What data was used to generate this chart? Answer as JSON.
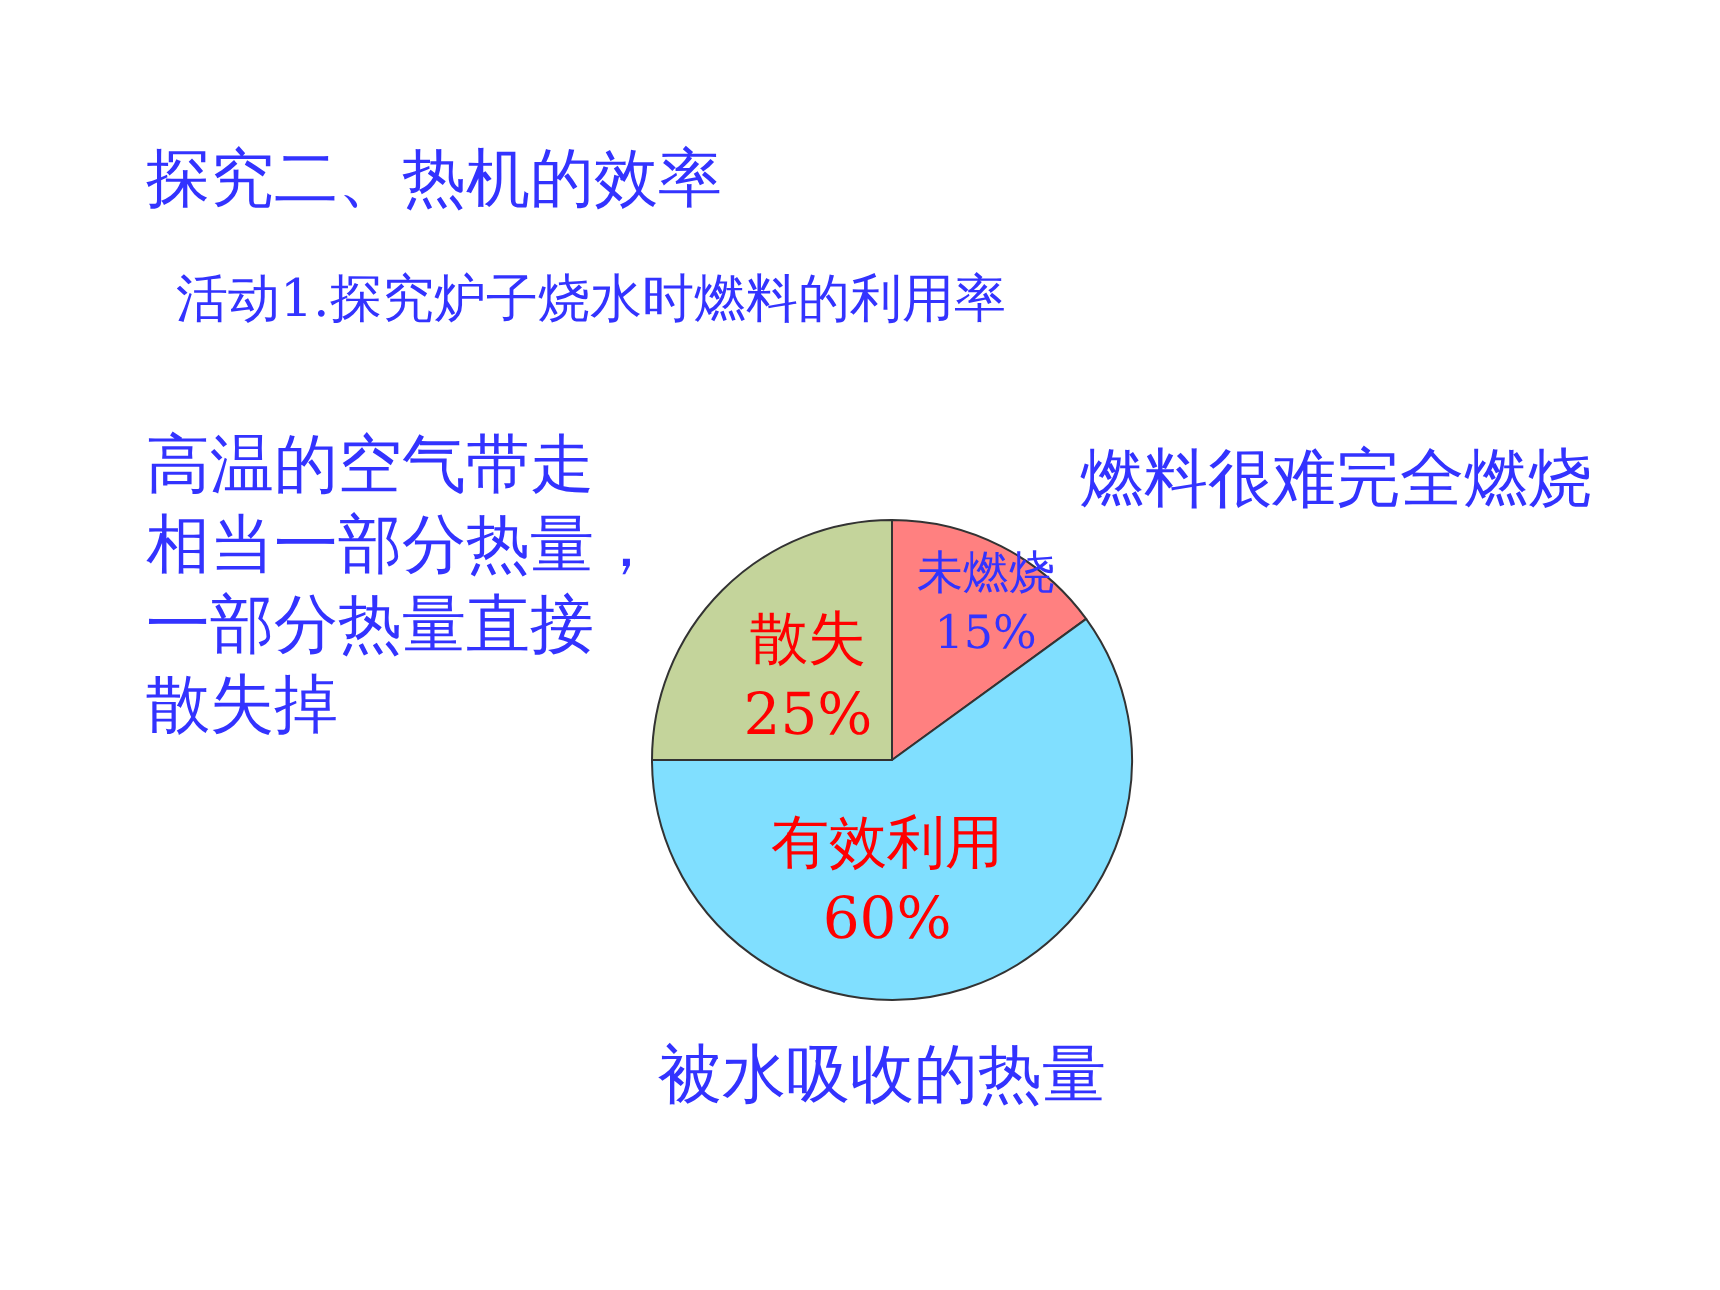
{
  "chart_data": {
    "type": "pie",
    "title": "探究二、热机的效率",
    "subtitle": "活动1.探究炉子烧水时燃料的利用率",
    "categories": [
      "未燃烧",
      "有效利用",
      "散失"
    ],
    "values": [
      15,
      60,
      25
    ],
    "value_labels": [
      "15%",
      "60%",
      "25%"
    ],
    "colors": [
      "#ff8080",
      "#80dfff",
      "#c4d49b"
    ],
    "annotations": [
      "高温的空气带走相当一部分热量，一部分热量直接散失掉",
      "燃料很难完全燃烧",
      "被水吸收的热量"
    ]
  }
}
